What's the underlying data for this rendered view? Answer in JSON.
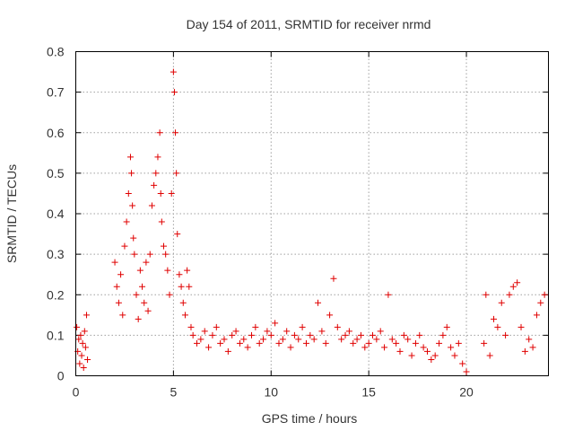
{
  "chart_data": {
    "type": "scatter",
    "title": "Day 154 of 2011, SRMTID for receiver nrmd",
    "xlabel": "GPS time / hours",
    "ylabel": "SRMTID / TECUs",
    "xlim": [
      0,
      24.2
    ],
    "ylim": [
      0,
      0.8
    ],
    "xticks": [
      0,
      5,
      10,
      15,
      20
    ],
    "xtick_labels": [
      "0",
      "5",
      "10",
      "15",
      "20"
    ],
    "yticks": [
      0,
      0.1,
      0.2,
      0.3,
      0.4,
      0.5,
      0.6,
      0.7,
      0.8
    ],
    "ytick_labels": [
      "0",
      "0.1",
      "0.2",
      "0.3",
      "0.4",
      "0.5",
      "0.6",
      "0.7",
      "0.8"
    ],
    "grid": true,
    "marker": "+",
    "color": "#e00000",
    "series": [
      {
        "name": "SRMTID",
        "x": [
          0.05,
          0.1,
          0.15,
          0.2,
          0.25,
          0.3,
          0.35,
          0.4,
          0.45,
          0.5,
          0.55,
          0.6,
          2.0,
          2.1,
          2.2,
          2.3,
          2.4,
          2.5,
          2.6,
          2.7,
          2.8,
          2.85,
          2.9,
          2.95,
          3.0,
          3.1,
          3.2,
          3.3,
          3.4,
          3.5,
          3.6,
          3.7,
          3.8,
          3.9,
          4.0,
          4.1,
          4.2,
          4.3,
          4.35,
          4.4,
          4.5,
          4.6,
          4.7,
          4.8,
          4.9,
          5.0,
          5.05,
          5.1,
          5.15,
          5.2,
          5.3,
          5.4,
          5.5,
          5.6,
          5.7,
          5.8,
          5.9,
          6.0,
          6.2,
          6.4,
          6.6,
          6.8,
          7.0,
          7.2,
          7.4,
          7.6,
          7.8,
          8.0,
          8.2,
          8.4,
          8.6,
          8.8,
          9.0,
          9.2,
          9.4,
          9.6,
          9.8,
          10.0,
          10.2,
          10.4,
          10.6,
          10.8,
          11.0,
          11.2,
          11.4,
          11.6,
          11.8,
          12.0,
          12.2,
          12.4,
          12.6,
          12.8,
          13.0,
          13.2,
          13.4,
          13.6,
          13.8,
          14.0,
          14.2,
          14.4,
          14.6,
          14.8,
          15.0,
          15.2,
          15.4,
          15.6,
          15.8,
          16.0,
          16.2,
          16.4,
          16.6,
          16.8,
          17.0,
          17.2,
          17.4,
          17.6,
          17.8,
          18.0,
          18.2,
          18.4,
          18.6,
          18.8,
          19.0,
          19.2,
          19.4,
          19.6,
          19.8,
          20.0,
          20.9,
          21.0,
          21.2,
          21.4,
          21.6,
          21.8,
          22.0,
          22.2,
          22.4,
          22.6,
          22.8,
          23.0,
          23.2,
          23.4,
          23.6,
          23.8,
          24.0
        ],
        "y": [
          0.12,
          0.06,
          0.09,
          0.03,
          0.1,
          0.05,
          0.08,
          0.02,
          0.11,
          0.07,
          0.15,
          0.04,
          0.28,
          0.22,
          0.18,
          0.25,
          0.15,
          0.32,
          0.38,
          0.45,
          0.54,
          0.5,
          0.42,
          0.34,
          0.3,
          0.2,
          0.14,
          0.26,
          0.22,
          0.18,
          0.28,
          0.16,
          0.3,
          0.42,
          0.47,
          0.5,
          0.54,
          0.6,
          0.45,
          0.38,
          0.32,
          0.3,
          0.26,
          0.2,
          0.45,
          0.75,
          0.7,
          0.6,
          0.5,
          0.35,
          0.25,
          0.22,
          0.18,
          0.15,
          0.26,
          0.22,
          0.12,
          0.1,
          0.08,
          0.09,
          0.11,
          0.07,
          0.1,
          0.12,
          0.08,
          0.09,
          0.06,
          0.1,
          0.11,
          0.08,
          0.09,
          0.07,
          0.1,
          0.12,
          0.08,
          0.09,
          0.11,
          0.1,
          0.13,
          0.08,
          0.09,
          0.11,
          0.07,
          0.1,
          0.09,
          0.12,
          0.08,
          0.1,
          0.09,
          0.18,
          0.11,
          0.08,
          0.15,
          0.24,
          0.12,
          0.09,
          0.1,
          0.11,
          0.08,
          0.09,
          0.1,
          0.07,
          0.08,
          0.1,
          0.09,
          0.11,
          0.07,
          0.2,
          0.09,
          0.08,
          0.06,
          0.1,
          0.09,
          0.05,
          0.08,
          0.1,
          0.07,
          0.06,
          0.04,
          0.05,
          0.08,
          0.1,
          0.12,
          0.07,
          0.05,
          0.08,
          0.03,
          0.01,
          0.08,
          0.2,
          0.05,
          0.14,
          0.12,
          0.18,
          0.1,
          0.2,
          0.22,
          0.23,
          0.12,
          0.06,
          0.09,
          0.07,
          0.15,
          0.18,
          0.2
        ]
      }
    ]
  }
}
